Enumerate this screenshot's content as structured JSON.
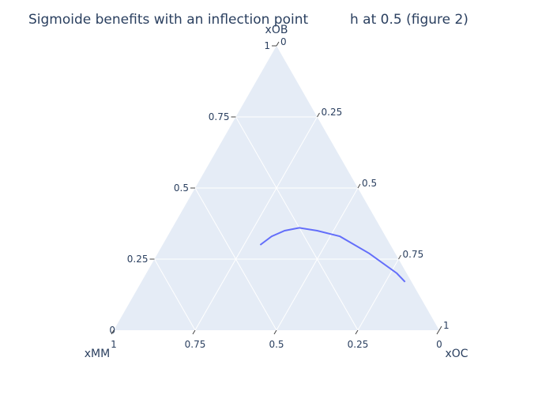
{
  "chart_data": {
    "type": "ternary-line",
    "title_part1": "Sigmoide benefits with an inflection point",
    "title_part2": "h at 0.5 (figure 2)",
    "axes": {
      "a": {
        "title": "xOB",
        "ticks": [
          "0.25",
          "0.5",
          "0.75",
          "1"
        ]
      },
      "b": {
        "title": "xMM",
        "ticks": [
          "1",
          "0.75",
          "0.5",
          "0.25",
          "0"
        ]
      },
      "c": {
        "title": "xOC",
        "ticks": [
          "0.25",
          "0.5",
          "0.75",
          "1"
        ]
      },
      "apex_label": "0",
      "a_zero_label": "0"
    },
    "grid": true,
    "colors": {
      "background": "#e5ecf6",
      "grid": "#ffffff",
      "line": "#636efa",
      "text": "#2a3f5f"
    },
    "series": [
      {
        "points": [
          {
            "a": 0.3,
            "b": 0.4,
            "c": 0.3
          },
          {
            "a": 0.33,
            "b": 0.35,
            "c": 0.32
          },
          {
            "a": 0.35,
            "b": 0.3,
            "c": 0.35
          },
          {
            "a": 0.36,
            "b": 0.25,
            "c": 0.39
          },
          {
            "a": 0.35,
            "b": 0.2,
            "c": 0.45
          },
          {
            "a": 0.33,
            "b": 0.14,
            "c": 0.53
          },
          {
            "a": 0.27,
            "b": 0.08,
            "c": 0.65
          },
          {
            "a": 0.2,
            "b": 0.03,
            "c": 0.77
          },
          {
            "a": 0.17,
            "b": 0.02,
            "c": 0.81
          }
        ]
      }
    ]
  }
}
